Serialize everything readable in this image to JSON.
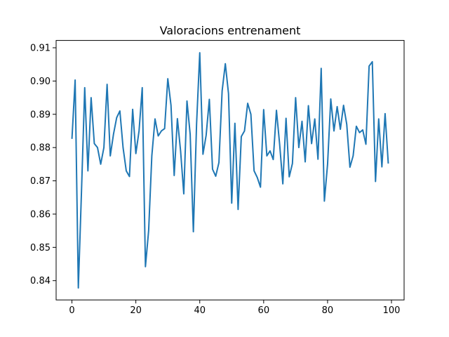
{
  "chart_data": {
    "type": "line",
    "title": "Valoracions entrenament",
    "xlabel": "",
    "ylabel": "",
    "xlim": [
      -4.95,
      103.95
    ],
    "ylim": [
      0.8342,
      0.9122
    ],
    "xticks": [
      0,
      20,
      40,
      60,
      80,
      100
    ],
    "xtick_labels": [
      "0",
      "20",
      "40",
      "60",
      "80",
      "100"
    ],
    "yticks": [
      0.84,
      0.85,
      0.86,
      0.87,
      0.88,
      0.89,
      0.9,
      0.91
    ],
    "ytick_labels": [
      "0.84",
      "0.85",
      "0.86",
      "0.87",
      "0.88",
      "0.89",
      "0.90",
      "0.91"
    ],
    "grid": false,
    "series": [
      {
        "color": "#1f77b4",
        "x": [
          0,
          1,
          2,
          3,
          4,
          5,
          6,
          7,
          8,
          9,
          10,
          11,
          12,
          13,
          14,
          15,
          16,
          17,
          18,
          19,
          20,
          21,
          22,
          23,
          24,
          25,
          26,
          27,
          28,
          29,
          30,
          31,
          32,
          33,
          34,
          35,
          36,
          37,
          38,
          39,
          40,
          41,
          42,
          43,
          44,
          45,
          46,
          47,
          48,
          49,
          50,
          51,
          52,
          53,
          54,
          55,
          56,
          57,
          58,
          59,
          60,
          61,
          62,
          63,
          64,
          65,
          66,
          67,
          68,
          69,
          70,
          71,
          72,
          73,
          74,
          75,
          76,
          77,
          78,
          79,
          80,
          81,
          82,
          83,
          84,
          85,
          86,
          87,
          88,
          89,
          90,
          91,
          92,
          93,
          94,
          95,
          96,
          97,
          98,
          99
        ],
        "y": [
          0.8826,
          0.9003,
          0.8378,
          0.8672,
          0.898,
          0.873,
          0.895,
          0.8812,
          0.88,
          0.875,
          0.88,
          0.899,
          0.8775,
          0.884,
          0.889,
          0.891,
          0.88,
          0.873,
          0.8713,
          0.8915,
          0.8782,
          0.885,
          0.898,
          0.8442,
          0.855,
          0.8775,
          0.8886,
          0.8835,
          0.885,
          0.8857,
          0.9007,
          0.8927,
          0.8716,
          0.8887,
          0.879,
          0.8661,
          0.894,
          0.884,
          0.8547,
          0.887,
          0.9085,
          0.878,
          0.8837,
          0.8945,
          0.8735,
          0.8714,
          0.8755,
          0.897,
          0.9052,
          0.8962,
          0.8633,
          0.8873,
          0.8614,
          0.8833,
          0.885,
          0.8933,
          0.89,
          0.873,
          0.871,
          0.8681,
          0.8914,
          0.8775,
          0.879,
          0.8764,
          0.8912,
          0.881,
          0.8691,
          0.8888,
          0.8712,
          0.8752,
          0.895,
          0.88,
          0.8879,
          0.8757,
          0.8926,
          0.8812,
          0.8886,
          0.8765,
          0.9038,
          0.8639,
          0.875,
          0.8946,
          0.885,
          0.8923,
          0.8855,
          0.8927,
          0.887,
          0.8741,
          0.8775,
          0.8864,
          0.8845,
          0.8853,
          0.881,
          0.9045,
          0.9058,
          0.8698,
          0.8886,
          0.8742,
          0.8902,
          0.8752
        ]
      }
    ]
  }
}
